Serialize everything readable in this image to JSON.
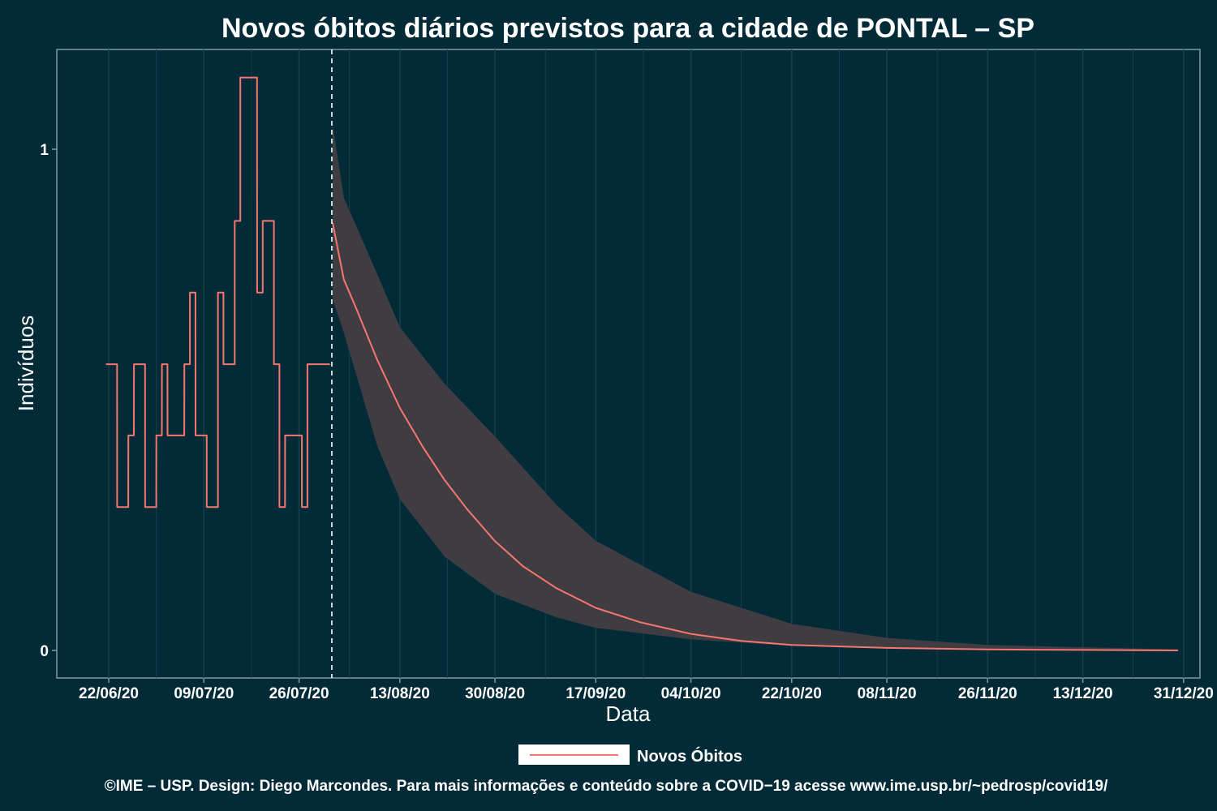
{
  "chart_data": {
    "type": "line",
    "title": "Novos óbitos diários previstos para a cidade de PONTAL – SP",
    "xlabel": "Data",
    "ylabel": "Indivíduos",
    "x_ticks": [
      "22/06/20",
      "09/07/20",
      "26/07/20",
      "13/08/20",
      "30/08/20",
      "17/09/20",
      "04/10/20",
      "22/10/20",
      "08/11/20",
      "26/11/20",
      "13/12/20",
      "31/12/20"
    ],
    "y_ticks": [
      0,
      1
    ],
    "ylim": [
      -0.055,
      1.2
    ],
    "grid": true,
    "legend_position": "bottom",
    "forecast_start": "2020-08-01",
    "series": [
      {
        "name": "Novos Óbitos",
        "color": "#f8766d",
        "kind": "observed",
        "x": [
          "2020-06-22",
          "2020-06-23",
          "2020-06-24",
          "2020-06-25",
          "2020-06-26",
          "2020-06-27",
          "2020-06-28",
          "2020-06-29",
          "2020-06-30",
          "2020-07-01",
          "2020-07-02",
          "2020-07-03",
          "2020-07-04",
          "2020-07-05",
          "2020-07-06",
          "2020-07-07",
          "2020-07-08",
          "2020-07-09",
          "2020-07-10",
          "2020-07-11",
          "2020-07-12",
          "2020-07-13",
          "2020-07-14",
          "2020-07-15",
          "2020-07-16",
          "2020-07-17",
          "2020-07-18",
          "2020-07-19",
          "2020-07-20",
          "2020-07-21",
          "2020-07-22",
          "2020-07-23",
          "2020-07-24",
          "2020-07-25",
          "2020-07-26",
          "2020-07-27",
          "2020-07-28",
          "2020-07-29",
          "2020-07-30",
          "2020-07-31"
        ],
        "y": [
          0.571,
          0.571,
          0.286,
          0.286,
          0.429,
          0.571,
          0.571,
          0.286,
          0.286,
          0.429,
          0.571,
          0.429,
          0.429,
          0.429,
          0.571,
          0.714,
          0.429,
          0.429,
          0.286,
          0.286,
          0.714,
          0.571,
          0.571,
          0.857,
          1.143,
          1.143,
          1.143,
          0.714,
          0.857,
          0.857,
          0.571,
          0.286,
          0.429,
          0.429,
          0.429,
          0.286,
          0.571,
          0.571,
          0.571,
          0.571
        ]
      },
      {
        "name": "Novos Óbitos",
        "color": "#f8766d",
        "kind": "forecast",
        "x": [
          "2020-08-01",
          "2020-08-03",
          "2020-08-05",
          "2020-08-09",
          "2020-08-13",
          "2020-08-17",
          "2020-08-21",
          "2020-08-25",
          "2020-08-30",
          "2020-09-04",
          "2020-09-10",
          "2020-09-17",
          "2020-09-25",
          "2020-10-04",
          "2020-10-13",
          "2020-10-22",
          "2020-11-08",
          "2020-11-26",
          "2020-12-13",
          "2020-12-30"
        ],
        "y": [
          0.853,
          0.74,
          0.688,
          0.579,
          0.484,
          0.408,
          0.34,
          0.282,
          0.218,
          0.168,
          0.124,
          0.085,
          0.056,
          0.033,
          0.019,
          0.011,
          0.005,
          0.002,
          0.001,
          0.0
        ]
      }
    ],
    "confidence_band": {
      "color": "#3f3c42",
      "x": [
        "2020-08-01",
        "2020-08-03",
        "2020-08-09",
        "2020-08-13",
        "2020-08-21",
        "2020-08-30",
        "2020-09-10",
        "2020-09-17",
        "2020-10-04",
        "2020-10-22",
        "2020-11-08",
        "2020-11-26",
        "2020-12-30"
      ],
      "upper": [
        1.05,
        0.903,
        0.75,
        0.645,
        0.532,
        0.427,
        0.29,
        0.219,
        0.117,
        0.053,
        0.025,
        0.011,
        0.002
      ],
      "lower": [
        0.7,
        0.634,
        0.407,
        0.302,
        0.187,
        0.113,
        0.066,
        0.045,
        0.022,
        0.009,
        0.004,
        0.002,
        0.0
      ]
    }
  },
  "legend": {
    "label": "Novos Óbitos"
  },
  "caption": "©IME – USP. Design: Diego Marcondes. Para mais informações e conteúdo sobre a COVID−19 acesse www.ime.usp.br/~pedrosp/covid19/"
}
